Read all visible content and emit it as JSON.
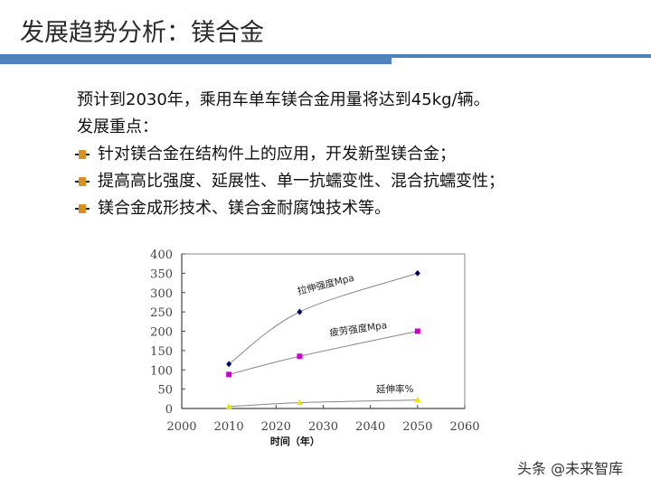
{
  "title": "发展趋势分析：镁合金",
  "accent_color": "#4f81bd",
  "content": {
    "intro": "预计到2030年，乘用车单车镁合金用量将达到45kg/辆。",
    "focus_heading": "发展重点：",
    "bullets": [
      "针对镁合金在结构件上的应用，开发新型镁合金；",
      "提高高比强度、延展性、单一抗蠕变性、混合抗蠕变性；",
      "镁合金成形技术、镁合金耐腐蚀技术等。"
    ],
    "bullet_icon": "orange-square-bullet-icon"
  },
  "chart_data": {
    "type": "line",
    "title": "",
    "xlabel": "时间（年）",
    "ylabel": "",
    "x": [
      2010,
      2025,
      2050
    ],
    "xlim": [
      2000,
      2060
    ],
    "ylim": [
      0,
      400
    ],
    "xticks": [
      2000,
      2010,
      2020,
      2030,
      2040,
      2050,
      2060
    ],
    "yticks": [
      0,
      50,
      100,
      150,
      200,
      250,
      300,
      350,
      400
    ],
    "grid": false,
    "legend": "inline labels on curves",
    "series": [
      {
        "name": "拉伸强度Mpa",
        "values": [
          115,
          250,
          350
        ],
        "color": "#000066",
        "marker": "diamond"
      },
      {
        "name": "疲劳强度Mpa",
        "values": [
          88,
          135,
          200
        ],
        "color": "#cc00cc",
        "marker": "square"
      },
      {
        "name": "延伸率%",
        "values": [
          5,
          15,
          22
        ],
        "color": "#e8e800",
        "marker": "triangle"
      }
    ]
  },
  "watermark": "头条 @未来智库"
}
